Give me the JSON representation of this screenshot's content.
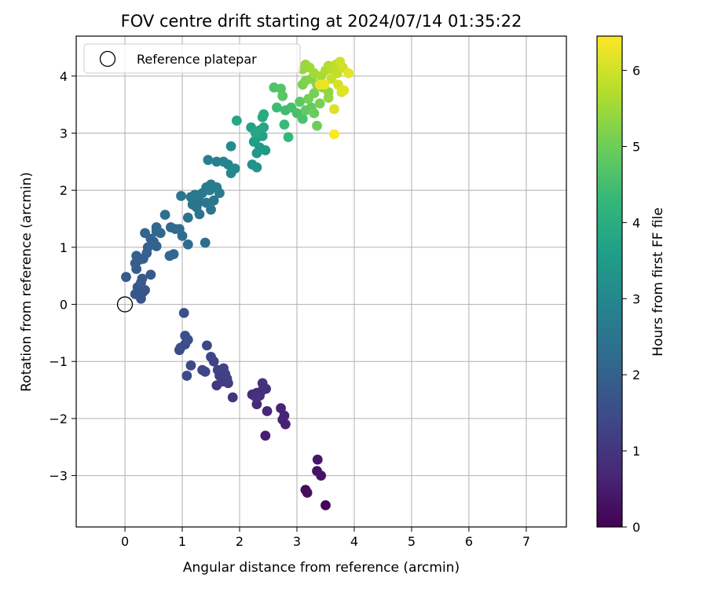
{
  "chart_data": {
    "type": "scatter",
    "title": "FOV centre drift starting at 2024/07/14 01:35:22",
    "xlabel": "Angular distance from reference (arcmin)",
    "ylabel": "Rotation from reference (arcmin)",
    "xlim": [
      -0.85,
      7.7
    ],
    "ylim": [
      -3.9,
      4.7
    ],
    "xticks": [
      0,
      1,
      2,
      3,
      4,
      5,
      6,
      7
    ],
    "yticks": [
      -3,
      -2,
      -1,
      0,
      1,
      2,
      3,
      4
    ],
    "grid": true,
    "legend": {
      "placement": "top-left",
      "entries": [
        "Reference platepar"
      ]
    },
    "reference_point": {
      "x": 0,
      "y": 0,
      "label": "Reference platepar",
      "marker": "open-circle"
    },
    "colorbar": {
      "label": "Hours from first FF file",
      "colormap": "viridis",
      "range": [
        0,
        6.45
      ],
      "ticks": [
        0,
        1,
        2,
        3,
        4,
        5,
        6
      ]
    },
    "points": [
      {
        "x": 3.5,
        "y": -3.52,
        "c": 0.05
      },
      {
        "x": 3.15,
        "y": -3.25,
        "c": 0.2
      },
      {
        "x": 3.18,
        "y": -3.3,
        "c": 0.25
      },
      {
        "x": 3.35,
        "y": -2.92,
        "c": 0.3
      },
      {
        "x": 3.42,
        "y": -3.0,
        "c": 0.35
      },
      {
        "x": 3.36,
        "y": -2.72,
        "c": 0.4
      },
      {
        "x": 2.45,
        "y": -2.3,
        "c": 0.55
      },
      {
        "x": 2.8,
        "y": -2.1,
        "c": 0.6
      },
      {
        "x": 2.75,
        "y": -2.02,
        "c": 0.62
      },
      {
        "x": 2.78,
        "y": -1.95,
        "c": 0.65
      },
      {
        "x": 2.72,
        "y": -1.82,
        "c": 0.68
      },
      {
        "x": 2.48,
        "y": -1.87,
        "c": 0.7
      },
      {
        "x": 2.3,
        "y": -1.75,
        "c": 0.75
      },
      {
        "x": 2.22,
        "y": -1.58,
        "c": 0.8
      },
      {
        "x": 2.3,
        "y": -1.55,
        "c": 0.82
      },
      {
        "x": 2.35,
        "y": -1.6,
        "c": 0.85
      },
      {
        "x": 2.4,
        "y": -1.5,
        "c": 0.87
      },
      {
        "x": 2.46,
        "y": -1.48,
        "c": 0.9
      },
      {
        "x": 2.4,
        "y": -1.38,
        "c": 0.92
      },
      {
        "x": 2.28,
        "y": -1.62,
        "c": 0.95
      },
      {
        "x": 1.88,
        "y": -1.63,
        "c": 1.0
      },
      {
        "x": 1.6,
        "y": -1.42,
        "c": 1.05
      },
      {
        "x": 1.7,
        "y": -1.35,
        "c": 1.1
      },
      {
        "x": 1.8,
        "y": -1.38,
        "c": 1.15
      },
      {
        "x": 1.78,
        "y": -1.3,
        "c": 1.2
      },
      {
        "x": 1.65,
        "y": -1.25,
        "c": 1.22
      },
      {
        "x": 1.75,
        "y": -1.22,
        "c": 1.25
      },
      {
        "x": 1.62,
        "y": -1.15,
        "c": 1.28
      },
      {
        "x": 1.72,
        "y": -1.12,
        "c": 1.3
      },
      {
        "x": 1.55,
        "y": -1.0,
        "c": 1.32
      },
      {
        "x": 1.5,
        "y": -0.92,
        "c": 1.35
      },
      {
        "x": 1.4,
        "y": -1.18,
        "c": 1.38
      },
      {
        "x": 1.35,
        "y": -1.15,
        "c": 1.4
      },
      {
        "x": 1.43,
        "y": -0.72,
        "c": 1.42
      },
      {
        "x": 1.08,
        "y": -1.25,
        "c": 1.45
      },
      {
        "x": 1.15,
        "y": -1.07,
        "c": 1.47
      },
      {
        "x": 0.95,
        "y": -0.8,
        "c": 1.5
      },
      {
        "x": 0.97,
        "y": -0.76,
        "c": 1.52
      },
      {
        "x": 1.05,
        "y": -0.7,
        "c": 1.55
      },
      {
        "x": 1.1,
        "y": -0.62,
        "c": 1.57
      },
      {
        "x": 1.05,
        "y": -0.55,
        "c": 1.6
      },
      {
        "x": 1.03,
        "y": -0.15,
        "c": 1.62
      },
      {
        "x": 0.28,
        "y": 0.1,
        "c": 1.7
      },
      {
        "x": 0.32,
        "y": 0.22,
        "c": 1.72
      },
      {
        "x": 0.35,
        "y": 0.25,
        "c": 1.74
      },
      {
        "x": 0.18,
        "y": 0.18,
        "c": 1.76
      },
      {
        "x": 0.22,
        "y": 0.3,
        "c": 1.78
      },
      {
        "x": 0.28,
        "y": 0.38,
        "c": 1.8
      },
      {
        "x": 0.02,
        "y": 0.48,
        "c": 1.82
      },
      {
        "x": 0.3,
        "y": 0.45,
        "c": 1.84
      },
      {
        "x": 0.45,
        "y": 0.52,
        "c": 1.86
      },
      {
        "x": 0.2,
        "y": 0.62,
        "c": 1.88
      },
      {
        "x": 0.18,
        "y": 0.72,
        "c": 1.9
      },
      {
        "x": 0.25,
        "y": 0.78,
        "c": 1.92
      },
      {
        "x": 0.32,
        "y": 0.8,
        "c": 1.94
      },
      {
        "x": 0.2,
        "y": 0.85,
        "c": 1.96
      },
      {
        "x": 0.38,
        "y": 0.9,
        "c": 1.98
      },
      {
        "x": 0.4,
        "y": 1.0,
        "c": 2.0
      },
      {
        "x": 0.55,
        "y": 1.02,
        "c": 2.02
      },
      {
        "x": 0.5,
        "y": 1.1,
        "c": 2.04
      },
      {
        "x": 0.45,
        "y": 1.15,
        "c": 2.06
      },
      {
        "x": 0.35,
        "y": 1.25,
        "c": 2.08
      },
      {
        "x": 0.55,
        "y": 1.28,
        "c": 2.1
      },
      {
        "x": 0.55,
        "y": 1.35,
        "c": 2.12
      },
      {
        "x": 0.62,
        "y": 1.25,
        "c": 2.14
      },
      {
        "x": 0.78,
        "y": 0.85,
        "c": 2.16
      },
      {
        "x": 0.85,
        "y": 0.88,
        "c": 2.18
      },
      {
        "x": 0.8,
        "y": 1.35,
        "c": 2.2
      },
      {
        "x": 0.88,
        "y": 1.32,
        "c": 2.22
      },
      {
        "x": 0.95,
        "y": 1.32,
        "c": 2.24
      },
      {
        "x": 1.0,
        "y": 1.2,
        "c": 2.26
      },
      {
        "x": 1.1,
        "y": 1.05,
        "c": 2.28
      },
      {
        "x": 1.4,
        "y": 1.08,
        "c": 2.3
      },
      {
        "x": 0.7,
        "y": 1.57,
        "c": 2.35
      },
      {
        "x": 1.1,
        "y": 1.52,
        "c": 2.4
      },
      {
        "x": 1.3,
        "y": 1.58,
        "c": 2.42
      },
      {
        "x": 1.25,
        "y": 1.7,
        "c": 2.44
      },
      {
        "x": 1.18,
        "y": 1.75,
        "c": 2.46
      },
      {
        "x": 1.3,
        "y": 1.8,
        "c": 2.48
      },
      {
        "x": 1.5,
        "y": 1.66,
        "c": 2.5
      },
      {
        "x": 1.42,
        "y": 1.78,
        "c": 2.52
      },
      {
        "x": 1.55,
        "y": 1.82,
        "c": 2.54
      },
      {
        "x": 0.98,
        "y": 1.9,
        "c": 2.56
      },
      {
        "x": 1.15,
        "y": 1.88,
        "c": 2.58
      },
      {
        "x": 1.22,
        "y": 1.92,
        "c": 2.6
      },
      {
        "x": 1.35,
        "y": 1.95,
        "c": 2.62
      },
      {
        "x": 1.42,
        "y": 2.05,
        "c": 2.64
      },
      {
        "x": 1.5,
        "y": 2.1,
        "c": 2.66
      },
      {
        "x": 1.6,
        "y": 2.05,
        "c": 2.68
      },
      {
        "x": 1.65,
        "y": 1.95,
        "c": 2.7
      },
      {
        "x": 1.48,
        "y": 2.0,
        "c": 2.72
      },
      {
        "x": 1.45,
        "y": 2.53,
        "c": 2.8
      },
      {
        "x": 1.6,
        "y": 2.5,
        "c": 2.85
      },
      {
        "x": 1.72,
        "y": 2.5,
        "c": 2.9
      },
      {
        "x": 1.8,
        "y": 2.45,
        "c": 2.95
      },
      {
        "x": 1.85,
        "y": 2.3,
        "c": 3.0
      },
      {
        "x": 1.92,
        "y": 2.38,
        "c": 3.05
      },
      {
        "x": 1.85,
        "y": 2.77,
        "c": 3.15
      },
      {
        "x": 2.22,
        "y": 2.45,
        "c": 3.3
      },
      {
        "x": 2.3,
        "y": 2.4,
        "c": 3.35
      },
      {
        "x": 2.3,
        "y": 2.65,
        "c": 3.4
      },
      {
        "x": 2.45,
        "y": 2.7,
        "c": 3.45
      },
      {
        "x": 2.35,
        "y": 2.75,
        "c": 3.5
      },
      {
        "x": 2.25,
        "y": 2.85,
        "c": 3.55
      },
      {
        "x": 2.3,
        "y": 2.92,
        "c": 3.6
      },
      {
        "x": 2.4,
        "y": 2.95,
        "c": 3.65
      },
      {
        "x": 2.2,
        "y": 3.1,
        "c": 3.7
      },
      {
        "x": 2.35,
        "y": 3.05,
        "c": 3.75
      },
      {
        "x": 2.42,
        "y": 3.1,
        "c": 3.8
      },
      {
        "x": 2.28,
        "y": 3.0,
        "c": 3.82
      },
      {
        "x": 1.95,
        "y": 3.22,
        "c": 3.85
      },
      {
        "x": 2.4,
        "y": 3.28,
        "c": 3.9
      },
      {
        "x": 2.42,
        "y": 3.33,
        "c": 3.95
      },
      {
        "x": 2.85,
        "y": 2.93,
        "c": 4.3
      },
      {
        "x": 2.78,
        "y": 3.15,
        "c": 4.35
      },
      {
        "x": 2.65,
        "y": 3.45,
        "c": 4.4
      },
      {
        "x": 2.8,
        "y": 3.4,
        "c": 4.45
      },
      {
        "x": 2.9,
        "y": 3.45,
        "c": 4.5
      },
      {
        "x": 3.0,
        "y": 3.35,
        "c": 4.55
      },
      {
        "x": 3.1,
        "y": 3.25,
        "c": 4.6
      },
      {
        "x": 2.6,
        "y": 3.8,
        "c": 4.65
      },
      {
        "x": 2.72,
        "y": 3.78,
        "c": 4.7
      },
      {
        "x": 2.75,
        "y": 3.65,
        "c": 4.75
      },
      {
        "x": 3.05,
        "y": 3.55,
        "c": 4.8
      },
      {
        "x": 3.15,
        "y": 3.4,
        "c": 4.85
      },
      {
        "x": 3.25,
        "y": 3.45,
        "c": 4.9
      },
      {
        "x": 3.3,
        "y": 3.35,
        "c": 4.95
      },
      {
        "x": 3.35,
        "y": 3.13,
        "c": 5.0
      },
      {
        "x": 3.2,
        "y": 3.6,
        "c": 5.05
      },
      {
        "x": 3.3,
        "y": 3.7,
        "c": 5.1
      },
      {
        "x": 3.4,
        "y": 3.52,
        "c": 5.12
      },
      {
        "x": 3.1,
        "y": 3.85,
        "c": 5.15
      },
      {
        "x": 3.15,
        "y": 3.92,
        "c": 5.2
      },
      {
        "x": 3.25,
        "y": 3.95,
        "c": 5.25
      },
      {
        "x": 3.35,
        "y": 3.85,
        "c": 5.3
      },
      {
        "x": 3.45,
        "y": 3.8,
        "c": 5.32
      },
      {
        "x": 3.55,
        "y": 3.72,
        "c": 5.35
      },
      {
        "x": 3.55,
        "y": 3.62,
        "c": 5.38
      },
      {
        "x": 3.1,
        "y": 4.12,
        "c": 5.4
      },
      {
        "x": 3.15,
        "y": 4.2,
        "c": 5.45
      },
      {
        "x": 3.22,
        "y": 4.15,
        "c": 5.5
      },
      {
        "x": 3.3,
        "y": 4.05,
        "c": 5.55
      },
      {
        "x": 3.42,
        "y": 4.0,
        "c": 5.6
      },
      {
        "x": 3.5,
        "y": 4.1,
        "c": 5.65
      },
      {
        "x": 3.55,
        "y": 4.18,
        "c": 5.7
      },
      {
        "x": 3.62,
        "y": 4.12,
        "c": 5.75
      },
      {
        "x": 3.68,
        "y": 4.2,
        "c": 5.8
      },
      {
        "x": 3.7,
        "y": 4.05,
        "c": 5.85
      },
      {
        "x": 3.6,
        "y": 3.95,
        "c": 5.9
      },
      {
        "x": 3.75,
        "y": 4.25,
        "c": 5.95
      },
      {
        "x": 3.8,
        "y": 4.15,
        "c": 6.0
      },
      {
        "x": 3.72,
        "y": 3.85,
        "c": 6.05
      },
      {
        "x": 3.78,
        "y": 3.72,
        "c": 6.1
      },
      {
        "x": 3.65,
        "y": 3.42,
        "c": 6.12
      },
      {
        "x": 3.82,
        "y": 3.75,
        "c": 6.15
      },
      {
        "x": 3.9,
        "y": 4.05,
        "c": 6.2
      },
      {
        "x": 3.4,
        "y": 3.85,
        "c": 6.25
      },
      {
        "x": 3.48,
        "y": 3.85,
        "c": 6.3
      },
      {
        "x": 3.65,
        "y": 2.98,
        "c": 6.45
      }
    ]
  },
  "colors": {
    "grid": "#b0b0b0",
    "axes": "#000000",
    "viridis_stops": [
      "#440154",
      "#482878",
      "#3e4989",
      "#31688e",
      "#26828e",
      "#1f9e89",
      "#35b779",
      "#6ece58",
      "#b5de2b",
      "#fde725"
    ]
  }
}
